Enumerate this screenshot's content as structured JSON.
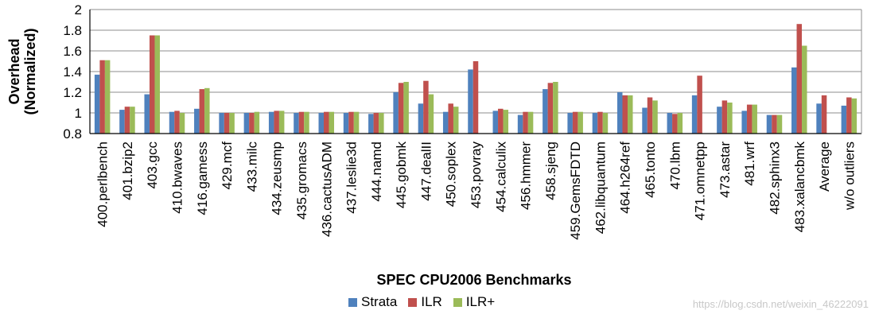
{
  "chart_data": {
    "type": "bar",
    "xlabel": "SPEC CPU2006 Benchmarks",
    "ylabel": "Overhead\n(Normalized)",
    "ylim": [
      0.8,
      2
    ],
    "yticks": [
      0.8,
      1,
      1.2,
      1.4,
      1.6,
      1.8,
      2
    ],
    "grid": true,
    "legend_position": "bottom",
    "categories": [
      "400.perlbench",
      "401.bzip2",
      "403.gcc",
      "410.bwaves",
      "416.gamess",
      "429.mcf",
      "433.milc",
      "434.zeusmp",
      "435.gromacs",
      "436.cactusADM",
      "437.leslie3d",
      "444.namd",
      "445.gobmk",
      "447.dealII",
      "450.soplex",
      "453.povray",
      "454.calculix",
      "456.hmmer",
      "458.sjeng",
      "459.GemsFDTD",
      "462.libquantum",
      "464.h264ref",
      "465.tonto",
      "470.lbm",
      "471.omnetpp",
      "473.astar",
      "481.wrf",
      "482.sphinx3",
      "483.xalancbmk",
      "Average",
      "w/o outliers"
    ],
    "series": [
      {
        "name": "Strata",
        "color": "#4f81bd",
        "values": [
          1.37,
          1.03,
          1.18,
          1.01,
          1.04,
          1.0,
          1.0,
          1.01,
          1.0,
          1.0,
          1.0,
          0.99,
          1.2,
          1.09,
          1.01,
          1.42,
          1.02,
          0.98,
          1.23,
          1.0,
          1.0,
          1.2,
          1.05,
          1.0,
          1.17,
          1.06,
          1.02,
          0.98,
          1.44,
          1.09,
          1.07
        ]
      },
      {
        "name": "ILR",
        "color": "#c0504d",
        "values": [
          1.51,
          1.06,
          1.75,
          1.02,
          1.23,
          1.0,
          1.0,
          1.02,
          1.01,
          1.01,
          1.01,
          1.0,
          1.29,
          1.31,
          1.09,
          1.5,
          1.04,
          1.01,
          1.29,
          1.01,
          1.01,
          1.17,
          1.15,
          0.99,
          1.36,
          1.12,
          1.08,
          0.98,
          1.86,
          1.17,
          1.15
        ]
      },
      {
        "name": "ILR+",
        "color": "#9bbb59",
        "values": [
          1.51,
          1.06,
          1.75,
          1.0,
          1.24,
          1.0,
          1.01,
          1.02,
          1.01,
          1.01,
          1.01,
          1.0,
          1.3,
          1.18,
          1.06,
          null,
          1.03,
          1.01,
          1.3,
          1.01,
          1.0,
          1.17,
          1.12,
          1.0,
          null,
          1.1,
          1.08,
          0.98,
          1.65,
          null,
          1.14
        ]
      }
    ]
  },
  "watermark": "https://blog.csdn.net/weixin_46222091"
}
